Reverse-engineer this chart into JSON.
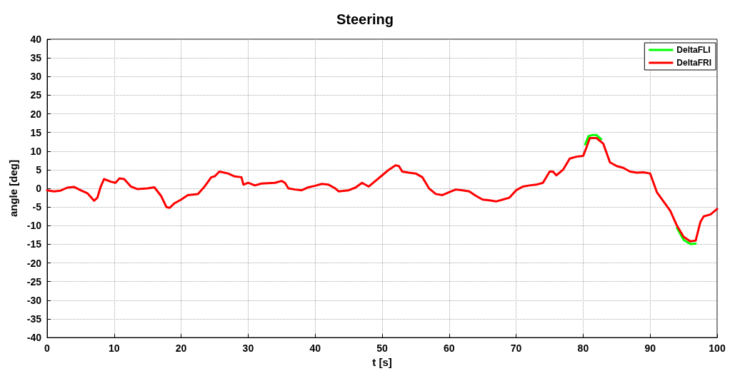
{
  "chart_data": {
    "type": "line",
    "title": "Steering",
    "xlabel": "t [s]",
    "ylabel": "angle [deg]",
    "xlim": [
      0,
      100
    ],
    "xticks": [
      0,
      10,
      20,
      30,
      40,
      50,
      60,
      70,
      80,
      90,
      100
    ],
    "ylim": [
      -40,
      40
    ],
    "yticks": [
      -40,
      -35,
      -30,
      -25,
      -20,
      -15,
      -10,
      -5,
      0,
      5,
      10,
      15,
      20,
      25,
      30,
      35,
      40
    ],
    "grid": true,
    "legend": "top right",
    "marker": "none",
    "line_style": "solid",
    "x": [
      0,
      1,
      2,
      3,
      4,
      5,
      6,
      7,
      7.5,
      8,
      8.5,
      9.5,
      10.2,
      10.8,
      11.5,
      12.5,
      13.5,
      15,
      16,
      17,
      17.8,
      18.3,
      19,
      20,
      21,
      22.5,
      23.5,
      24.5,
      25,
      25.7,
      27,
      28,
      29,
      29.3,
      30,
      31,
      32,
      34,
      35,
      35.5,
      36,
      37,
      38,
      39,
      40,
      41,
      42,
      43,
      43.5,
      45,
      46,
      47,
      48,
      49,
      50,
      51,
      52,
      52.5,
      53,
      54,
      55,
      56,
      57,
      58,
      59,
      60,
      61,
      62,
      63,
      64,
      65,
      66,
      67,
      68,
      69,
      70,
      71,
      72,
      73,
      74,
      75,
      75.5,
      76,
      77,
      78,
      79,
      80,
      80.5,
      81,
      82,
      83,
      84,
      85,
      86,
      87,
      88,
      89,
      90,
      91,
      92,
      93,
      94,
      95,
      96,
      96.8,
      97.5,
      98,
      99,
      100
    ],
    "series": [
      {
        "name": "DeltaFLI",
        "color": "#00ff00",
        "x": [
          80.3,
          80.8,
          81.3,
          82,
          82.7,
          83,
          94,
          95,
          96,
          96.8
        ],
        "values": [
          11.8,
          14,
          14.3,
          14.3,
          13.2,
          null,
          -10.6,
          -13.8,
          -14.9,
          -14.8
        ]
      },
      {
        "name": "DeltaFRI",
        "color": "#ff0000",
        "values": [
          -0.5,
          -0.8,
          -0.6,
          0.2,
          0.4,
          -0.5,
          -1.3,
          -3.3,
          -2.5,
          0.5,
          2.5,
          1.8,
          1.5,
          2.7,
          2.5,
          0.5,
          -0.2,
          0,
          0.3,
          -2,
          -5,
          -5.2,
          -4,
          -3,
          -1.8,
          -1.5,
          0.5,
          3,
          3.2,
          4.5,
          4,
          3.2,
          3,
          1,
          1.5,
          0.8,
          1.3,
          1.5,
          2,
          1.5,
          0,
          -0.3,
          -0.5,
          0.3,
          0.7,
          1.2,
          1,
          0,
          -0.8,
          -0.5,
          0.2,
          1.5,
          0.5,
          2,
          3.5,
          5,
          6.2,
          6,
          4.5,
          4.2,
          4,
          3,
          0,
          -1.5,
          -1.8,
          -1,
          -0.3,
          -0.5,
          -0.8,
          -2,
          -3,
          -3.2,
          -3.5,
          -3,
          -2.5,
          -0.5,
          0.5,
          0.8,
          1,
          1.5,
          4.5,
          4.5,
          3.5,
          5,
          8,
          8.5,
          8.7,
          11,
          13.5,
          13.5,
          12,
          7,
          6,
          5.5,
          4.5,
          4.2,
          4.3,
          4,
          -1,
          -3.5,
          -6,
          -10,
          -13,
          -14.2,
          -14,
          -9,
          -7.5,
          -7,
          -5.5
        ]
      }
    ]
  }
}
